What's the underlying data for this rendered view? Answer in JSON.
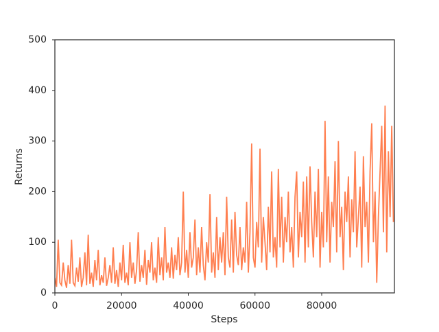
{
  "chart_data": {
    "type": "line",
    "xlabel": "Steps",
    "ylabel": "Returns",
    "x": [
      0,
      500,
      1000,
      1500,
      2000,
      2500,
      3000,
      3500,
      4000,
      4500,
      5000,
      5500,
      6000,
      6500,
      7000,
      7500,
      8000,
      8500,
      9000,
      9500,
      10000,
      10500,
      11000,
      11500,
      12000,
      12500,
      13000,
      13500,
      14000,
      14500,
      15000,
      15500,
      16000,
      16500,
      17000,
      17500,
      18000,
      18500,
      19000,
      19500,
      20000,
      20500,
      21000,
      21500,
      22000,
      22500,
      23000,
      23500,
      24000,
      24500,
      25000,
      25500,
      26000,
      26500,
      27000,
      27500,
      28000,
      28500,
      29000,
      29500,
      30000,
      30500,
      31000,
      31500,
      32000,
      32500,
      33000,
      33500,
      34000,
      34500,
      35000,
      35500,
      36000,
      36500,
      37000,
      37500,
      38000,
      38500,
      39000,
      39500,
      40000,
      40500,
      41000,
      41500,
      42000,
      42500,
      43000,
      43500,
      44000,
      44500,
      45000,
      45500,
      46000,
      46500,
      47000,
      47500,
      48000,
      48500,
      49000,
      49500,
      50000,
      50500,
      51000,
      51500,
      52000,
      52500,
      53000,
      53500,
      54000,
      54500,
      55000,
      55500,
      56000,
      56500,
      57000,
      57500,
      58000,
      58500,
      59000,
      59500,
      60000,
      60500,
      61000,
      61500,
      62000,
      62500,
      63000,
      63500,
      64000,
      64500,
      65000,
      65500,
      66000,
      66500,
      67000,
      67500,
      68000,
      68500,
      69000,
      69500,
      70000,
      70500,
      71000,
      71500,
      72000,
      72500,
      73000,
      73500,
      74000,
      74500,
      75000,
      75500,
      76000,
      76500,
      77000,
      77500,
      78000,
      78500,
      79000,
      79500,
      80000,
      80500,
      81000,
      81500,
      82000,
      82500,
      83000,
      83500,
      84000,
      84500,
      85000,
      85500,
      86000,
      86500,
      87000,
      87500,
      88000,
      88500,
      89000,
      89500,
      90000,
      90500,
      91000,
      91500,
      92000,
      92500,
      93000,
      93500,
      94000,
      94500,
      95000,
      95500,
      96000,
      96500,
      97000,
      97500,
      98000,
      98500,
      99000,
      99500,
      100000,
      100500,
      101000,
      101500
    ],
    "values": [
      30,
      12,
      105,
      20,
      15,
      60,
      25,
      10,
      55,
      18,
      105,
      20,
      14,
      50,
      22,
      70,
      12,
      30,
      80,
      15,
      115,
      18,
      40,
      12,
      65,
      25,
      85,
      15,
      35,
      20,
      70,
      14,
      30,
      55,
      20,
      90,
      18,
      45,
      12,
      60,
      25,
      95,
      20,
      40,
      15,
      100,
      30,
      60,
      18,
      45,
      120,
      22,
      55,
      30,
      85,
      16,
      65,
      40,
      100,
      25,
      50,
      20,
      110,
      35,
      70,
      25,
      130,
      40,
      60,
      30,
      90,
      28,
      75,
      45,
      110,
      35,
      60,
      200,
      40,
      85,
      30,
      120,
      50,
      70,
      145,
      35,
      90,
      40,
      130,
      55,
      25,
      100,
      60,
      195,
      40,
      80,
      30,
      150,
      45,
      110,
      60,
      120,
      35,
      190,
      70,
      50,
      145,
      40,
      160,
      75,
      55,
      130,
      45,
      90,
      60,
      180,
      40,
      120,
      295,
      70,
      50,
      140,
      90,
      285,
      60,
      150,
      100,
      45,
      170,
      80,
      240,
      70,
      110,
      50,
      245,
      90,
      190,
      60,
      150,
      100,
      200,
      80,
      130,
      50,
      190,
      240,
      70,
      160,
      110,
      220,
      60,
      230,
      90,
      250,
      140,
      70,
      200,
      110,
      245,
      50,
      160,
      90,
      340,
      100,
      230,
      60,
      180,
      130,
      260,
      80,
      300,
      110,
      170,
      45,
      200,
      140,
      230,
      70,
      185,
      120,
      280,
      90,
      150,
      210,
      50,
      270,
      130,
      180,
      60,
      240,
      335,
      100,
      200,
      20,
      150,
      240,
      330,
      120,
      370,
      80,
      280,
      150,
      330,
      140
    ],
    "color": "#ff7f50",
    "xlim": [
      0,
      101800
    ],
    "ylim": [
      0,
      500
    ],
    "xticks": [
      0,
      20000,
      40000,
      60000,
      80000
    ],
    "yticks": [
      0,
      100,
      200,
      300,
      400,
      500
    ]
  }
}
